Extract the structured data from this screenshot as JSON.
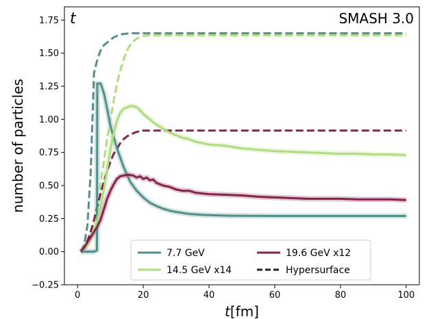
{
  "chart_data": {
    "type": "line",
    "xlabel": "t[fm]",
    "ylabel": "number of particles",
    "xlim": [
      -4,
      104
    ],
    "ylim": [
      -0.25,
      1.85
    ],
    "xticks": [
      0,
      20,
      40,
      60,
      80,
      100
    ],
    "yticks": [
      -0.25,
      0.0,
      0.25,
      0.5,
      0.75,
      1.0,
      1.25,
      1.5,
      1.75
    ],
    "ytick_labels": [
      "−0.25",
      "0.00",
      "0.25",
      "0.50",
      "0.75",
      "1.00",
      "1.25",
      "1.50",
      "1.75"
    ],
    "xtick_labels": [
      "0",
      "20",
      "40",
      "60",
      "80",
      "100"
    ],
    "grid": false,
    "legend_position": "bottom-center",
    "corner_left": "t",
    "corner_right": "SMASH 3.0",
    "legend": [
      {
        "label": "7.7 GeV",
        "color": "#528f8b",
        "style": "solid"
      },
      {
        "label": "14.5 GeV x14",
        "color": "#b0dc80",
        "style": "solid"
      },
      {
        "label": "19.6 GeV x12",
        "color": "#85224a",
        "style": "solid"
      },
      {
        "label": "Hypersurface",
        "color": "#222222",
        "style": "dashed"
      }
    ],
    "series": [
      {
        "name": "7.7 GeV",
        "color": "#528f8b",
        "style": "solid",
        "x": [
          1,
          2,
          3,
          4,
          5,
          5.9,
          6,
          6.5,
          7,
          8,
          9,
          10,
          12,
          14,
          16,
          18,
          20,
          22,
          24,
          26,
          28,
          30,
          34,
          38,
          42,
          46,
          50,
          60,
          70,
          80,
          90,
          100
        ],
        "y": [
          0.0,
          0.0,
          0.0,
          0.0,
          0.0,
          0.01,
          1.27,
          1.27,
          1.27,
          1.2,
          1.08,
          0.95,
          0.78,
          0.64,
          0.53,
          0.46,
          0.41,
          0.37,
          0.345,
          0.325,
          0.31,
          0.3,
          0.285,
          0.278,
          0.275,
          0.272,
          0.271,
          0.27,
          0.27,
          0.27,
          0.27,
          0.27
        ]
      },
      {
        "name": "14.5 GeV x14",
        "color": "#b0dc80",
        "style": "solid",
        "x": [
          1,
          2,
          3,
          4,
          5,
          6,
          7,
          8,
          9,
          10,
          11,
          12,
          13,
          14,
          15,
          16,
          17,
          18,
          19,
          20,
          22,
          24,
          26,
          28,
          30,
          32,
          34,
          36,
          38,
          40,
          45,
          50,
          55,
          60,
          65,
          70,
          75,
          80,
          85,
          90,
          95,
          100
        ],
        "y": [
          0.0,
          0.02,
          0.05,
          0.1,
          0.16,
          0.24,
          0.34,
          0.47,
          0.62,
          0.77,
          0.9,
          0.99,
          1.05,
          1.08,
          1.09,
          1.1,
          1.1,
          1.09,
          1.07,
          1.04,
          1.0,
          0.96,
          0.93,
          0.9,
          0.88,
          0.86,
          0.85,
          0.83,
          0.82,
          0.81,
          0.8,
          0.78,
          0.77,
          0.76,
          0.755,
          0.75,
          0.745,
          0.74,
          0.74,
          0.735,
          0.735,
          0.73
        ]
      },
      {
        "name": "19.6 GeV x12",
        "color": "#85224a",
        "style": "solid",
        "x": [
          1,
          2,
          3,
          4,
          5,
          6,
          7,
          8,
          9,
          10,
          11,
          12,
          13,
          14,
          15,
          16,
          17,
          18,
          19,
          20,
          21,
          22,
          23,
          24,
          25,
          26,
          28,
          30,
          32,
          34,
          36,
          38,
          40,
          45,
          50,
          55,
          60,
          65,
          70,
          75,
          80,
          85,
          90,
          95,
          100
        ],
        "y": [
          0.0,
          0.03,
          0.07,
          0.11,
          0.15,
          0.19,
          0.24,
          0.32,
          0.4,
          0.46,
          0.51,
          0.55,
          0.57,
          0.575,
          0.58,
          0.58,
          0.575,
          0.56,
          0.57,
          0.55,
          0.56,
          0.54,
          0.545,
          0.52,
          0.51,
          0.5,
          0.49,
          0.47,
          0.46,
          0.46,
          0.445,
          0.44,
          0.435,
          0.43,
          0.425,
          0.415,
          0.41,
          0.405,
          0.4,
          0.4,
          0.4,
          0.395,
          0.395,
          0.395,
          0.39
        ]
      },
      {
        "name": "7.7 GeV Hypersurface",
        "color": "#528f8b",
        "style": "dashed",
        "x": [
          1,
          2,
          3,
          4,
          5,
          6,
          7,
          8,
          9,
          10,
          11,
          12,
          13,
          14,
          16,
          20,
          30,
          50,
          70,
          100
        ],
        "y": [
          0.0,
          0.05,
          0.2,
          0.6,
          1.35,
          1.45,
          1.52,
          1.56,
          1.58,
          1.6,
          1.62,
          1.63,
          1.64,
          1.645,
          1.65,
          1.65,
          1.65,
          1.65,
          1.65,
          1.65
        ]
      },
      {
        "name": "14.5 GeV x14 Hypersurface",
        "color": "#b0dc80",
        "style": "dashed",
        "x": [
          1,
          2,
          3,
          4,
          5,
          6,
          7,
          8,
          9,
          10,
          11,
          12,
          13,
          14,
          15,
          16,
          17,
          18,
          19,
          20,
          22,
          25,
          30,
          40,
          60,
          80,
          100
        ],
        "y": [
          0.0,
          0.02,
          0.06,
          0.12,
          0.22,
          0.36,
          0.52,
          0.68,
          0.85,
          1.0,
          1.14,
          1.27,
          1.37,
          1.45,
          1.52,
          1.56,
          1.59,
          1.61,
          1.62,
          1.63,
          1.635,
          1.635,
          1.635,
          1.635,
          1.635,
          1.635,
          1.635
        ]
      },
      {
        "name": "19.6 GeV x12 Hypersurface",
        "color": "#85224a",
        "style": "dashed",
        "x": [
          1,
          2,
          3,
          4,
          5,
          6,
          7,
          8,
          9,
          10,
          11,
          12,
          13,
          14,
          15,
          16,
          17,
          18,
          19,
          20,
          22,
          25,
          30,
          40,
          60,
          80,
          100
        ],
        "y": [
          0.0,
          0.03,
          0.08,
          0.15,
          0.24,
          0.34,
          0.44,
          0.53,
          0.61,
          0.68,
          0.74,
          0.78,
          0.82,
          0.85,
          0.87,
          0.885,
          0.895,
          0.905,
          0.91,
          0.915,
          0.915,
          0.915,
          0.915,
          0.915,
          0.915,
          0.915,
          0.915
        ]
      }
    ]
  }
}
